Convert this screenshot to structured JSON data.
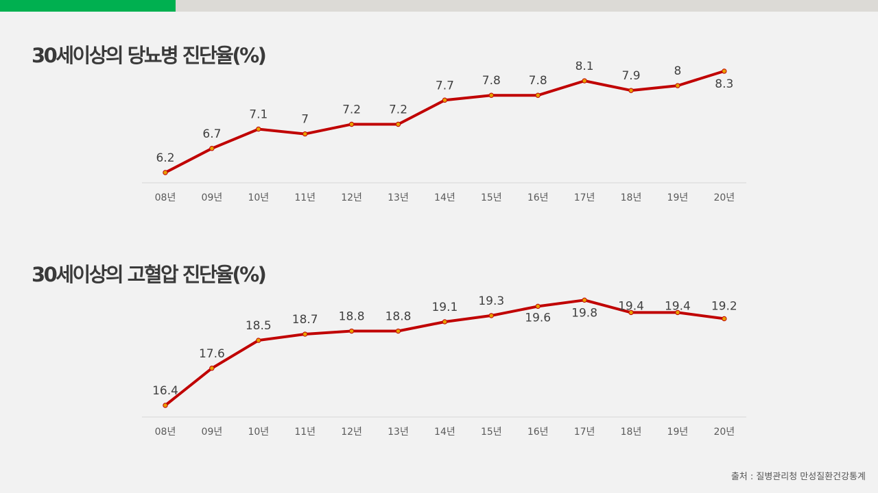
{
  "header": {
    "accent_color": "#00b050",
    "bar_color": "#dcdad6"
  },
  "chart_data": [
    {
      "type": "line",
      "title": "30세이상의 당뇨병 진단율(%)",
      "categories": [
        "08년",
        "09년",
        "10년",
        "11년",
        "12년",
        "13년",
        "14년",
        "15년",
        "16년",
        "17년",
        "18년",
        "19년",
        "20년"
      ],
      "values": [
        6.2,
        6.7,
        7.1,
        7,
        7.2,
        7.2,
        7.7,
        7.8,
        7.8,
        8.1,
        7.9,
        8,
        8.3
      ],
      "value_labels": [
        "6.2",
        "6.7",
        "7.1",
        "7",
        "7.2",
        "7.2",
        "7.7",
        "7.8",
        "7.8",
        "8.1",
        "7.9",
        "8",
        "8.3"
      ],
      "line_color": "#c00000",
      "marker_color": "#e8a000",
      "grid": false,
      "legend": "none"
    },
    {
      "type": "line",
      "title": "30세이상의 고혈압 진단율(%)",
      "categories": [
        "08년",
        "09년",
        "10년",
        "11년",
        "12년",
        "13년",
        "14년",
        "15년",
        "16년",
        "17년",
        "18년",
        "19년",
        "20년"
      ],
      "values": [
        16.4,
        17.6,
        18.5,
        18.7,
        18.8,
        18.8,
        19.1,
        19.3,
        19.6,
        19.8,
        19.4,
        19.4,
        19.2
      ],
      "value_labels": [
        "16.4",
        "17.6",
        "18.5",
        "18.7",
        "18.8",
        "18.8",
        "19.1",
        "19.3",
        "19.6",
        "19.8",
        "19.4",
        "19.4",
        "19.2"
      ],
      "line_color": "#c00000",
      "marker_color": "#e8a000",
      "grid": false,
      "legend": "none"
    }
  ],
  "footer": {
    "source": "출처 : 질병관리청 만성질환건강통계"
  }
}
